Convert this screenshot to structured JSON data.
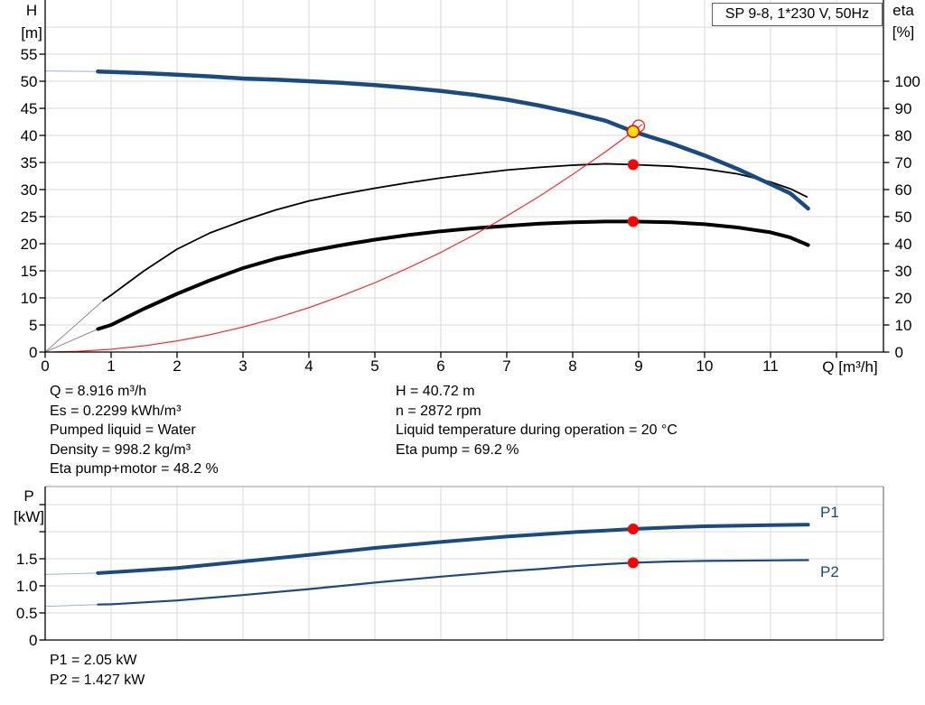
{
  "header": {
    "model_box": "SP 9-8, 1*230 V, 50Hz"
  },
  "axis_labels": {
    "h1": "H",
    "h2": "[m]",
    "eta1": "eta",
    "eta2": "[%]",
    "p1": "P",
    "p2": "[kW]",
    "q": "Q [m³/h]"
  },
  "curve_labels": {
    "p1": "P1",
    "p2": "P2"
  },
  "annotations": {
    "left": [
      "Q = 8.916 m³/h",
      "Es = 0.2299 kWh/m³",
      "Pumped liquid = Water",
      "Density = 998.2 kg/m³",
      "Eta pump+motor = 48.2 %"
    ],
    "right": [
      "H = 40.72 m",
      "n = 2872 rpm",
      "Liquid temperature during operation = 20 °C",
      "Eta pump = 69.2 %"
    ],
    "power": [
      "P1 = 2.05 kW",
      "P2 = 1.427 kW"
    ]
  },
  "colors": {
    "curve_blue": "#1B4A7E",
    "curve_black": "#000000",
    "curve_red": "#FF1A1A",
    "dot_red": "#FF0000",
    "dot_yellow": "#FFE100",
    "dot_yellow_stroke": "#E30613",
    "grid": "#D9D9D9",
    "lead_blue": "#A3B2C6",
    "lead_gray": "#8C8C8C",
    "axis_black": "#000000",
    "border_gray": "#808080",
    "border_light": "#ABABAB",
    "label_blue": "#1B4A7E"
  },
  "chart_data": [
    {
      "type": "line",
      "name": "qh-eta-chart",
      "xlabel": "Q [m³/h]",
      "ylabel_left": "H [m]",
      "ylabel_right": "eta [%]",
      "xlim": [
        0,
        12.71
      ],
      "ylim_left": [
        0,
        65
      ],
      "ylim_right": [
        0,
        130
      ],
      "grid": true,
      "x_ticks": [
        {
          "v": 0,
          "label": "0"
        },
        {
          "v": 1,
          "label": "1"
        },
        {
          "v": 2,
          "label": "2"
        },
        {
          "v": 3,
          "label": "3"
        },
        {
          "v": 4,
          "label": "4"
        },
        {
          "v": 5,
          "label": "5"
        },
        {
          "v": 6,
          "label": "6"
        },
        {
          "v": 7,
          "label": "7"
        },
        {
          "v": 8,
          "label": "8"
        },
        {
          "v": 9,
          "label": "9"
        },
        {
          "v": 10,
          "label": "10"
        },
        {
          "v": 11,
          "label": "11"
        },
        {
          "v": 12,
          "label": ""
        }
      ],
      "h_ticks": [
        0,
        5,
        10,
        15,
        20,
        25,
        30,
        35,
        40,
        45,
        50,
        55
      ],
      "h_grid": [
        5,
        10,
        15,
        20,
        25,
        30,
        35,
        40,
        45,
        50,
        55,
        60
      ],
      "eta_ticks": [
        0,
        10,
        20,
        30,
        40,
        50,
        60,
        70,
        80,
        90,
        100
      ],
      "series": [
        {
          "name": "eta-pump-curve",
          "axis": "eta",
          "color": "curve_black",
          "width": 1.8,
          "lead_color": "lead_gray",
          "lead": [
            [
              0,
              0
            ],
            [
              0.88,
              19
            ]
          ],
          "points": [
            [
              0.88,
              19
            ],
            [
              1,
              21
            ],
            [
              1.5,
              30
            ],
            [
              2,
              38
            ],
            [
              2.5,
              44
            ],
            [
              3,
              48.5
            ],
            [
              3.5,
              52.5
            ],
            [
              4,
              55.8
            ],
            [
              4.5,
              58.3
            ],
            [
              5,
              60.5
            ],
            [
              5.5,
              62.5
            ],
            [
              6,
              64.3
            ],
            [
              6.5,
              65.8
            ],
            [
              7,
              67.2
            ],
            [
              7.5,
              68.2
            ],
            [
              8,
              69
            ],
            [
              8.5,
              69.5
            ],
            [
              8.916,
              69.2
            ],
            [
              9.5,
              68.6
            ],
            [
              10,
              67.6
            ],
            [
              10.5,
              65.8
            ],
            [
              11,
              62.8
            ],
            [
              11.3,
              60.3
            ],
            [
              11.55,
              57.3
            ]
          ]
        },
        {
          "name": "eta-pump-motor-curve",
          "axis": "eta",
          "color": "curve_black",
          "width": 4,
          "lead_color": "lead_gray",
          "lead": [
            [
              0,
              0
            ],
            [
              0.8,
              8.5
            ]
          ],
          "points": [
            [
              0.8,
              8.5
            ],
            [
              1,
              10
            ],
            [
              1.5,
              16
            ],
            [
              2,
              21.5
            ],
            [
              2.5,
              26.5
            ],
            [
              3,
              31
            ],
            [
              3.5,
              34.5
            ],
            [
              4,
              37.2
            ],
            [
              4.5,
              39.5
            ],
            [
              5,
              41.5
            ],
            [
              5.5,
              43.2
            ],
            [
              6,
              44.6
            ],
            [
              6.5,
              45.7
            ],
            [
              7,
              46.6
            ],
            [
              7.5,
              47.4
            ],
            [
              8,
              47.9
            ],
            [
              8.5,
              48.2
            ],
            [
              8.916,
              48.2
            ],
            [
              9.5,
              47.9
            ],
            [
              10,
              47.2
            ],
            [
              10.5,
              46
            ],
            [
              11,
              44.2
            ],
            [
              11.3,
              42.3
            ],
            [
              11.57,
              39.5
            ]
          ]
        },
        {
          "name": "system-curve",
          "axis": "H",
          "color": "curve_red",
          "width": 1.1,
          "points": [
            [
              0,
              0
            ],
            [
              0.5,
              0.13
            ],
            [
              1,
              0.51
            ],
            [
              1.5,
              1.15
            ],
            [
              2,
              2.05
            ],
            [
              2.5,
              3.2
            ],
            [
              3,
              4.61
            ],
            [
              3.5,
              6.27
            ],
            [
              4,
              8.2
            ],
            [
              4.5,
              10.4
            ],
            [
              5,
              12.8
            ],
            [
              5.5,
              15.5
            ],
            [
              6,
              18.4
            ],
            [
              6.5,
              21.6
            ],
            [
              7,
              25.1
            ],
            [
              7.5,
              28.8
            ],
            [
              8,
              32.8
            ],
            [
              8.5,
              37.0
            ],
            [
              8.916,
              40.72
            ],
            [
              9.05,
              42.0
            ]
          ]
        },
        {
          "name": "head-curve",
          "axis": "H",
          "color": "curve_blue",
          "width": 4.5,
          "lead_color": "lead_blue",
          "lead": [
            [
              0,
              51.9
            ],
            [
              0.8,
              51.8
            ]
          ],
          "points": [
            [
              0.8,
              51.8
            ],
            [
              1.5,
              51.5
            ],
            [
              2,
              51.2
            ],
            [
              2.5,
              50.9
            ],
            [
              3,
              50.5
            ],
            [
              3.5,
              50.3
            ],
            [
              4,
              50.0
            ],
            [
              4.5,
              49.7
            ],
            [
              5,
              49.3
            ],
            [
              5.5,
              48.8
            ],
            [
              6,
              48.2
            ],
            [
              6.5,
              47.5
            ],
            [
              7,
              46.6
            ],
            [
              7.5,
              45.5
            ],
            [
              8,
              44.2
            ],
            [
              8.5,
              42.7
            ],
            [
              8.916,
              40.72
            ],
            [
              9.5,
              38.5
            ],
            [
              10,
              36.3
            ],
            [
              10.5,
              33.8
            ],
            [
              11,
              31.0
            ],
            [
              11.3,
              29.3
            ],
            [
              11.57,
              26.5
            ]
          ]
        }
      ],
      "markers": [
        {
          "name": "system-curve-ring",
          "q": 9.0,
          "y": 41.75,
          "axis": "H",
          "style": "ring"
        },
        {
          "name": "duty-point",
          "q": 8.916,
          "y": 40.72,
          "axis": "H",
          "style": "yellow"
        },
        {
          "name": "eta-pump-point",
          "q": 8.916,
          "y": 69.2,
          "axis": "eta",
          "style": "red"
        },
        {
          "name": "eta-pump-motor-point",
          "q": 8.916,
          "y": 48.2,
          "axis": "eta",
          "style": "red"
        }
      ]
    },
    {
      "type": "line",
      "name": "power-chart",
      "xlabel": "Q [m³/h]",
      "ylabel_left": "P [kW]",
      "xlim": [
        0,
        12.71
      ],
      "ylim": [
        0,
        2.83
      ],
      "grid": true,
      "p_ticks": [
        {
          "v": 0,
          "label": "0"
        },
        {
          "v": 0.5,
          "label": "0.5"
        },
        {
          "v": 1,
          "label": "1.0"
        },
        {
          "v": 1.5,
          "label": "1.5"
        }
      ],
      "p_minor_ticks": [
        2,
        2.5
      ],
      "p_grid": [
        0.5,
        1,
        1.5,
        2,
        2.5
      ],
      "series": [
        {
          "name": "p1-curve",
          "axis": "P",
          "color": "curve_blue",
          "width": 4,
          "lead_color": "lead_blue",
          "lead": [
            [
              0,
              1.21
            ],
            [
              0.8,
              1.235
            ]
          ],
          "points": [
            [
              0.8,
              1.235
            ],
            [
              1,
              1.25
            ],
            [
              2,
              1.33
            ],
            [
              3,
              1.45
            ],
            [
              4,
              1.57
            ],
            [
              5,
              1.7
            ],
            [
              6,
              1.81
            ],
            [
              6.5,
              1.86
            ],
            [
              7,
              1.91
            ],
            [
              7.5,
              1.95
            ],
            [
              8,
              1.99
            ],
            [
              8.5,
              2.02
            ],
            [
              8.916,
              2.05
            ],
            [
              9.5,
              2.08
            ],
            [
              10,
              2.1
            ],
            [
              11,
              2.12
            ],
            [
              11.57,
              2.13
            ]
          ]
        },
        {
          "name": "p2-curve",
          "axis": "P",
          "color": "curve_blue",
          "width": 2.2,
          "lead_color": "lead_blue",
          "lead": [
            [
              0,
              0.62
            ],
            [
              0.8,
              0.655
            ]
          ],
          "points": [
            [
              0.8,
              0.655
            ],
            [
              1,
              0.66
            ],
            [
              2,
              0.73
            ],
            [
              3,
              0.83
            ],
            [
              4,
              0.94
            ],
            [
              5,
              1.06
            ],
            [
              6,
              1.17
            ],
            [
              6.5,
              1.22
            ],
            [
              7,
              1.27
            ],
            [
              7.5,
              1.31
            ],
            [
              8,
              1.36
            ],
            [
              8.5,
              1.4
            ],
            [
              8.916,
              1.427
            ],
            [
              9.5,
              1.45
            ],
            [
              10,
              1.46
            ],
            [
              11,
              1.47
            ],
            [
              11.57,
              1.475
            ]
          ]
        }
      ],
      "markers": [
        {
          "name": "p1-point",
          "q": 8.916,
          "y": 2.05,
          "axis": "P",
          "style": "red"
        },
        {
          "name": "p2-point",
          "q": 8.916,
          "y": 1.427,
          "axis": "P",
          "style": "red"
        }
      ]
    }
  ]
}
